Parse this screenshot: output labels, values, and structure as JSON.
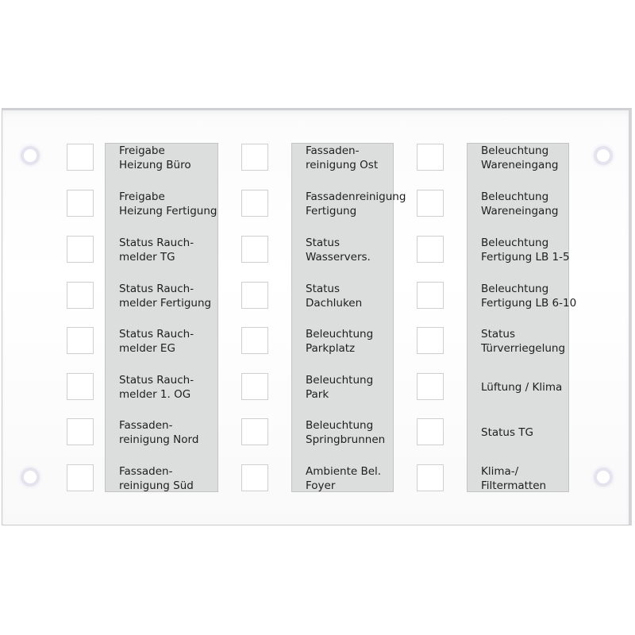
{
  "columns": [
    {
      "labels": [
        "Freigabe\nHeizung Büro",
        "Freigabe\nHeizung Fertigung",
        "Status Rauch-\nmelder TG",
        "Status Rauch-\nmelder Fertigung",
        "Status Rauch-\nmelder EG",
        "Status Rauch-\nmelder 1. OG",
        "Fassaden-\nreinigung Nord",
        "Fassaden-\nreinigung Süd"
      ]
    },
    {
      "labels": [
        "Fassaden-\nreinigung Ost",
        "Fassadenreinigung\nFertigung",
        "Status\nWasservers.",
        "Status\nDachluken",
        "Beleuchtung\nParkplatz",
        "Beleuchtung\nPark",
        "Beleuchtung\nSpringbrunnen",
        "Ambiente Bel.\nFoyer"
      ]
    },
    {
      "labels": [
        "Beleuchtung\nWareneingang",
        "Beleuchtung\nWareneingang",
        "Beleuchtung\nFertigung LB 1-5",
        "Beleuchtung\nFertigung LB 6-10",
        "Status\nTürverriegelung",
        "Lüftung / Klima",
        "Status TG",
        "Klima-/\nFiltermatten"
      ]
    }
  ],
  "colors": {
    "label_strip": "#dcdddd",
    "panel": "#ffffff",
    "text": "#1e1e1e"
  }
}
